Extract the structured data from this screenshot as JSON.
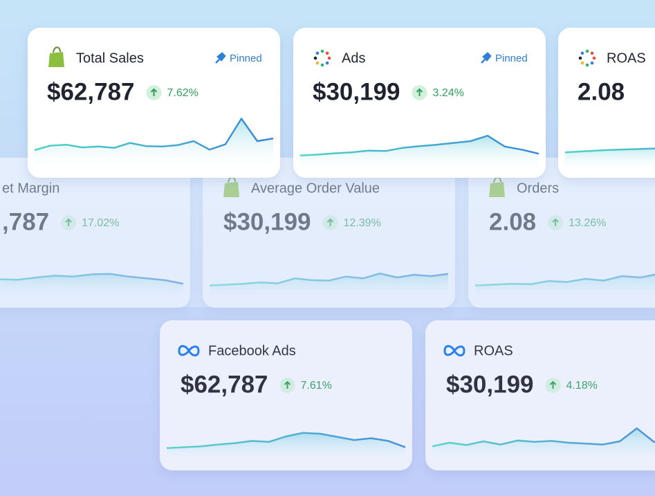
{
  "cards": [
    {
      "title": "Total Sales",
      "value": "$62,787",
      "change": "7.62%",
      "badge": "Pinned",
      "sparkline": [
        2,
        3,
        3.2,
        2.6,
        2.8,
        2.5,
        3.6,
        2.9,
        2.8,
        3.1,
        4,
        2.1,
        3.3,
        9,
        4,
        4.6
      ]
    },
    {
      "title": "Ads",
      "value": "$30,199",
      "change": "3.24%",
      "badge": "Pinned",
      "sparkline": [
        0.8,
        1,
        1.3,
        1.5,
        1.9,
        1.8,
        2.5,
        2.9,
        3.2,
        3.6,
        4,
        5.2,
        2.8,
        2.1,
        1.2
      ]
    },
    {
      "title": "ROAS",
      "value": "2.08",
      "sparkline": [
        1.5,
        2,
        2.3,
        2.6,
        3,
        3.2,
        3.3
      ]
    },
    {
      "title": "et Margin",
      "value": ",787",
      "change": "17.02%",
      "sparkline": [
        1.5,
        2,
        1.8,
        2.2,
        2.1,
        2.6,
        3,
        2.8,
        3.3,
        3.4,
        2.8,
        2.4,
        2,
        1.2
      ]
    },
    {
      "title": "Average Order Value",
      "value": "$30,199",
      "change": "12.39%",
      "sparkline": [
        0.8,
        1,
        1.2,
        1.5,
        1.3,
        2.4,
        2,
        1.9,
        2.8,
        2.4,
        3.5,
        2.6,
        3.2,
        2.9,
        3.4
      ]
    },
    {
      "title": "Orders",
      "value": "2.08",
      "change": "13.26%",
      "sparkline": [
        0.8,
        1,
        1.2,
        1.1,
        1.8,
        1.6,
        2.3,
        1.9,
        2.9,
        2.6,
        3.4,
        2.8,
        3.6,
        3.5
      ]
    },
    {
      "title": "Facebook Ads",
      "value": "$62,787",
      "change": "7.61%",
      "sparkline": [
        0.8,
        1,
        1.2,
        1.6,
        1.9,
        2.4,
        2.2,
        3.4,
        4.2,
        4,
        3.3,
        2.6,
        3,
        2.4,
        1
      ]
    },
    {
      "title": "ROAS",
      "value": "$30,199",
      "change": "4.18%",
      "sparkline": [
        1.2,
        2,
        1.5,
        2.3,
        1.6,
        2.5,
        2.2,
        2.4,
        2,
        1.8,
        1.6,
        2.3,
        5.2,
        2.2,
        1.8
      ]
    }
  ]
}
